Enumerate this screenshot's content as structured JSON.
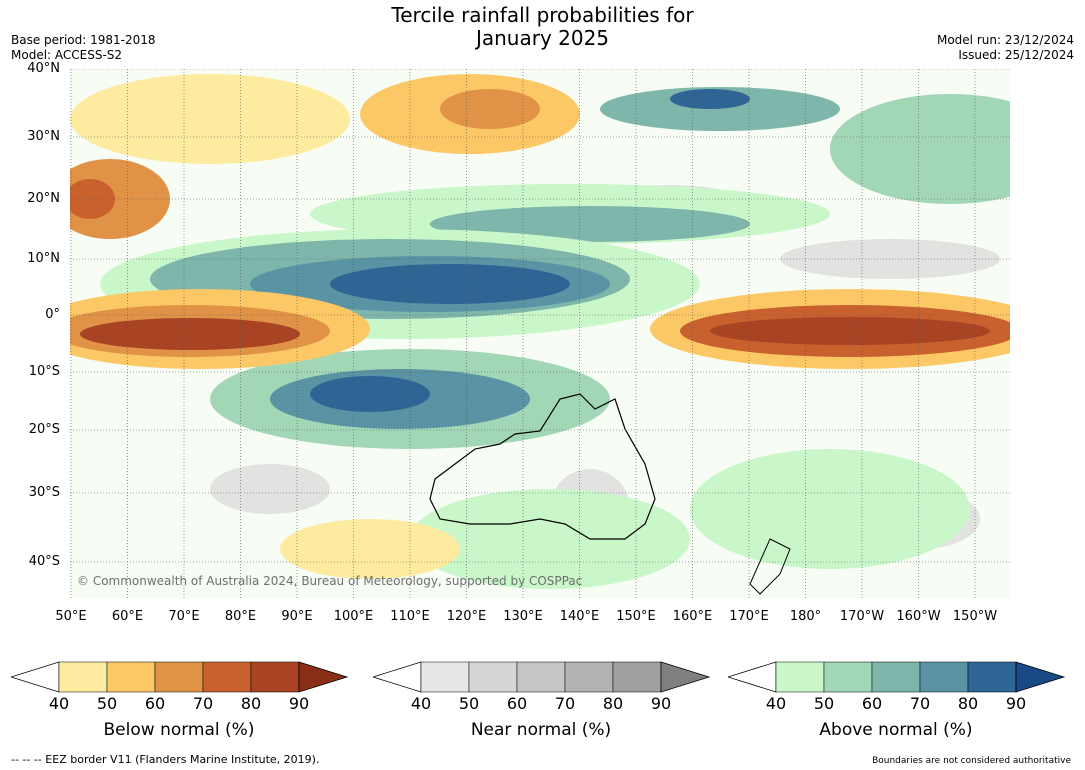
{
  "title_line1": "Tercile rainfall probabilities for",
  "title_line2": "January 2025",
  "meta_left": [
    "Base period: 1981-2018",
    "Model: ACCESS-S2"
  ],
  "meta_right": [
    "Model run: 23/12/2024",
    "Issued: 25/12/2024"
  ],
  "lat_labels": [
    "40°N",
    "30°N",
    "20°N",
    "10°N",
    "0°",
    "10°S",
    "20°S",
    "30°S",
    "40°S"
  ],
  "lon_labels": [
    "50°E",
    "60°E",
    "70°E",
    "80°E",
    "90°E",
    "100°E",
    "110°E",
    "120°E",
    "130°E",
    "140°E",
    "150°E",
    "160°E",
    "170°E",
    "180°",
    "170°W",
    "160°W",
    "150°W"
  ],
  "copyright": "© Commonwealth of Australia 2024, Bureau of Meteorology, supported by COSPPac",
  "colorbars": [
    {
      "caption": "Below normal (%)",
      "ticks": [
        "40",
        "50",
        "60",
        "70",
        "80",
        "90"
      ],
      "colors": [
        "#ffffff",
        "#fdeca0",
        "#fcc865",
        "#e09246",
        "#c9612f",
        "#a84323",
        "#8b2e18"
      ]
    },
    {
      "caption": "Near normal (%)",
      "ticks": [
        "40",
        "50",
        "60",
        "70",
        "80",
        "90"
      ],
      "colors": [
        "#ffffff",
        "#e6e6e6",
        "#d6d6d6",
        "#c6c6c6",
        "#b3b3b3",
        "#a0a0a0",
        "#808080"
      ]
    },
    {
      "caption": "Above normal (%)",
      "ticks": [
        "40",
        "50",
        "60",
        "70",
        "80",
        "90"
      ],
      "colors": [
        "#ffffff",
        "#c9f7c9",
        "#a1d6b7",
        "#7fb6ac",
        "#5a93a3",
        "#2e6594",
        "#194a85"
      ]
    }
  ],
  "footer_left": "-- -- -- EEZ border V11 (Flanders Marine Institute, 2019).",
  "footer_right": "Boundaries are not considered authoritative"
}
